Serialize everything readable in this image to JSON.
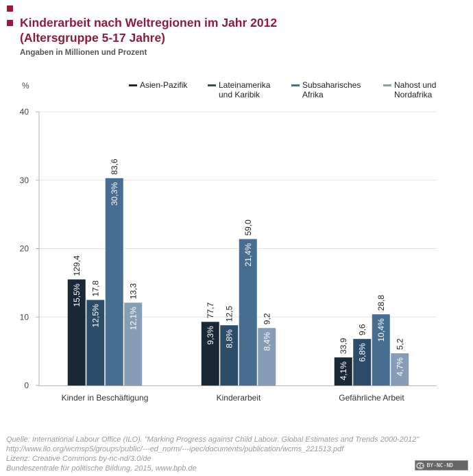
{
  "header": {
    "title_line1": "Kinderarbeit nach Weltregionen im Jahr 2012",
    "title_line2": "(Altersgruppe 5-17 Jahre)",
    "subtitle": "Angaben in Millionen und Prozent"
  },
  "colors": {
    "accent": "#8e1b3b",
    "grid": "#e3e3e3",
    "axis": "#b3b3b3"
  },
  "chart_data": {
    "type": "bar",
    "title": "Kinderarbeit nach Weltregionen im Jahr 2012 (Altersgruppe 5-17 Jahre)",
    "subtitle": "Angaben in Millionen und Prozent",
    "xlabel": "",
    "ylabel": "%",
    "ylim": [
      0,
      40
    ],
    "yticks": [
      0,
      10,
      20,
      30,
      40
    ],
    "grid": true,
    "legend_position": "top-right",
    "categories": [
      "Kinder in Beschäftigung",
      "Kinderarbeit",
      "Gefährliche Arbeit"
    ],
    "series": [
      {
        "name": "Asien-Pazifik",
        "color": "#1b2836",
        "values": [
          15.5,
          9.3,
          4.1
        ],
        "pct_labels": [
          "15,5%",
          "9,3%",
          "4,1%"
        ],
        "millions_labels": [
          "129,4",
          "77,7",
          "33,9"
        ]
      },
      {
        "name": "Lateinamerika\nund Karibik",
        "color": "#2c4d6a",
        "values": [
          12.5,
          8.8,
          6.8
        ],
        "pct_labels": [
          "12,5%",
          "8,8%",
          "6,8%"
        ],
        "millions_labels": [
          "17,8",
          "12,5",
          "9,6"
        ]
      },
      {
        "name": "Subsaharisches\nAfrika",
        "color": "#476d90",
        "values": [
          30.3,
          21.4,
          10.4
        ],
        "pct_labels": [
          "30,3%",
          "21,4%",
          "10,4%"
        ],
        "millions_labels": [
          "83,6",
          "59,0",
          "28,8"
        ]
      },
      {
        "name": "Nahost und\nNordafrika",
        "color": "#879db5",
        "values": [
          12.1,
          8.4,
          4.7
        ],
        "pct_labels": [
          "12,1%",
          "8,4%",
          "4,7%"
        ],
        "millions_labels": [
          "13,3",
          "9,2",
          "5,2"
        ]
      }
    ]
  },
  "footer": {
    "source_lines": [
      "Quelle: International Labour Office (ILO). \"Marking Progress against Child Labour. Global Estimates and Trends 2000-2012\"",
      "http://www.ilo.org/wcmsp5/groups/public/---ed_norm/---ipec/documents/publication/wcms_221513.pdf",
      "Lizenz: Creative Commons by-nc-nd/3.0/de",
      "Bundeszentrale für politische Bildung, 2015, www.bpb.de"
    ],
    "license_badge_cc": "cc",
    "license_badge_text": "BY-NC-ND"
  }
}
